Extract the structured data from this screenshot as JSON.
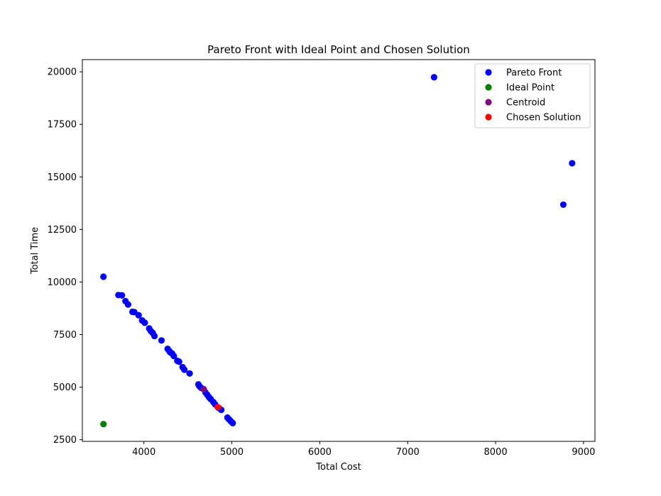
{
  "chart_data": {
    "type": "scatter",
    "title": "Pareto Front with Ideal Point and Chosen Solution",
    "xlabel": "Total Cost",
    "ylabel": "Total Time",
    "xlim": [
      3300,
      9130
    ],
    "ylim": [
      2420,
      20580
    ],
    "x_ticks": [
      4000,
      5000,
      6000,
      7000,
      8000,
      9000
    ],
    "y_ticks": [
      2500,
      5000,
      7500,
      10000,
      12500,
      15000,
      17500,
      20000
    ],
    "x_tick_labels": [
      "4000",
      "5000",
      "6000",
      "7000",
      "8000",
      "9000"
    ],
    "y_tick_labels": [
      "2500",
      "5000",
      "7500",
      "10000",
      "12500",
      "15000",
      "17500",
      "20000"
    ],
    "grid": false,
    "legend_position": "top-right",
    "series": [
      {
        "name": "Pareto Front",
        "color": "#0000ff",
        "points": [
          [
            7300,
            19740
          ],
          [
            8870,
            15650
          ],
          [
            8770,
            13680
          ],
          [
            3540,
            10250
          ],
          [
            3710,
            9380
          ],
          [
            3750,
            9370
          ],
          [
            3790,
            9090
          ],
          [
            3820,
            8930
          ],
          [
            3870,
            8580
          ],
          [
            3890,
            8570
          ],
          [
            3940,
            8420
          ],
          [
            3980,
            8170
          ],
          [
            4010,
            8060
          ],
          [
            4060,
            7790
          ],
          [
            4080,
            7660
          ],
          [
            4100,
            7580
          ],
          [
            4120,
            7430
          ],
          [
            4200,
            7220
          ],
          [
            4270,
            6820
          ],
          [
            4290,
            6710
          ],
          [
            4300,
            6650
          ],
          [
            4320,
            6600
          ],
          [
            4340,
            6480
          ],
          [
            4380,
            6250
          ],
          [
            4400,
            6210
          ],
          [
            4440,
            5950
          ],
          [
            4460,
            5830
          ],
          [
            4520,
            5650
          ],
          [
            4620,
            5130
          ],
          [
            4630,
            5050
          ],
          [
            4650,
            4970
          ],
          [
            4680,
            4900
          ],
          [
            4700,
            4750
          ],
          [
            4720,
            4640
          ],
          [
            4740,
            4520
          ],
          [
            4760,
            4430
          ],
          [
            4790,
            4290
          ],
          [
            4810,
            4180
          ],
          [
            4850,
            4010
          ],
          [
            4880,
            3920
          ],
          [
            4950,
            3550
          ],
          [
            4970,
            3460
          ],
          [
            4990,
            3370
          ],
          [
            5010,
            3290
          ]
        ]
      },
      {
        "name": "Ideal Point",
        "color": "#008000",
        "points": [
          [
            3540,
            3240
          ]
        ]
      },
      {
        "name": "Centroid",
        "color": "#800080",
        "points": [
          [
            4680,
            4900
          ]
        ]
      },
      {
        "name": "Chosen Solution",
        "color": "#ff0000",
        "points": [
          [
            4840,
            4050
          ]
        ]
      }
    ]
  }
}
